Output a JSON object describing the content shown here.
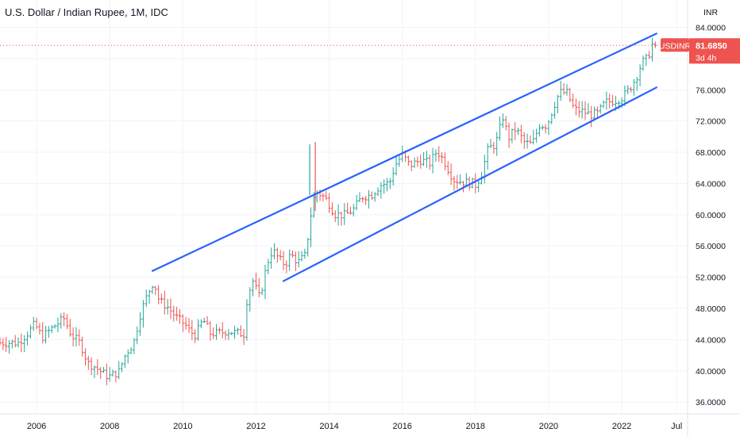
{
  "title": "U.S. Dollar / Indian Rupee, 1M, IDC",
  "currency_label": "INR",
  "price_badge": {
    "symbol": "USDINR",
    "price": "81.6850",
    "countdown": "3d 4h",
    "color": "#ef5350"
  },
  "colors": {
    "up": "#26a69a",
    "down": "#ef5350",
    "channel": "#2962ff",
    "grid": "#f0f3fa",
    "price_line": "#ef5350"
  },
  "chart_data": {
    "type": "candlestick",
    "title": "U.S. Dollar / Indian Rupee, 1M, IDC",
    "xlabel": "",
    "ylabel": "INR",
    "ylim": [
      34.5,
      87.5
    ],
    "xlim": [
      2005.0,
      2023.8
    ],
    "y_ticks": [
      "36.0000",
      "40.0000",
      "44.0000",
      "48.0000",
      "52.0000",
      "56.0000",
      "60.0000",
      "64.0000",
      "68.0000",
      "72.0000",
      "76.0000",
      "80.0000",
      "84.0000"
    ],
    "x_ticks": [
      {
        "label": "2006",
        "x": 2006
      },
      {
        "label": "2008",
        "x": 2008
      },
      {
        "label": "2010",
        "x": 2010
      },
      {
        "label": "2012",
        "x": 2012
      },
      {
        "label": "2014",
        "x": 2014
      },
      {
        "label": "2016",
        "x": 2016
      },
      {
        "label": "2018",
        "x": 2018
      },
      {
        "label": "2020",
        "x": 2020
      },
      {
        "label": "2022",
        "x": 2022
      },
      {
        "label": "Jul",
        "x": 2023.5
      }
    ],
    "last_price": 81.685,
    "channel_lines": [
      {
        "name": "upper",
        "from": [
          2009.17,
          52.8
        ],
        "to": [
          2022.95,
          83.2
        ]
      },
      {
        "name": "lower",
        "from": [
          2012.75,
          51.5
        ],
        "to": [
          2022.95,
          76.3
        ]
      }
    ],
    "series_anchor_points": [
      [
        2005.0,
        43.6
      ],
      [
        2005.5,
        43.6
      ],
      [
        2005.75,
        44.8
      ],
      [
        2005.95,
        46.0
      ],
      [
        2006.15,
        44.3
      ],
      [
        2006.5,
        45.8
      ],
      [
        2006.75,
        46.7
      ],
      [
        2006.95,
        44.6
      ],
      [
        2007.2,
        43.5
      ],
      [
        2007.4,
        41.0
      ],
      [
        2007.6,
        40.5
      ],
      [
        2007.9,
        39.4
      ],
      [
        2008.0,
        39.3
      ],
      [
        2008.25,
        39.9
      ],
      [
        2008.45,
        42.3
      ],
      [
        2008.65,
        43.5
      ],
      [
        2008.85,
        47.5
      ],
      [
        2009.05,
        50.0
      ],
      [
        2009.2,
        51.5
      ],
      [
        2009.35,
        49.0
      ],
      [
        2009.6,
        48.1
      ],
      [
        2009.85,
        46.7
      ],
      [
        2010.05,
        46.0
      ],
      [
        2010.2,
        45.0
      ],
      [
        2010.35,
        44.6
      ],
      [
        2010.55,
        46.6
      ],
      [
        2010.75,
        44.8
      ],
      [
        2010.95,
        44.8
      ],
      [
        2011.2,
        45.1
      ],
      [
        2011.45,
        44.9
      ],
      [
        2011.7,
        44.7
      ],
      [
        2011.75,
        49.0
      ],
      [
        2011.9,
        51.7
      ],
      [
        2012.1,
        49.3
      ],
      [
        2012.3,
        53.7
      ],
      [
        2012.45,
        55.5
      ],
      [
        2012.65,
        54.2
      ],
      [
        2012.8,
        53.6
      ],
      [
        2012.95,
        54.9
      ],
      [
        2013.15,
        53.9
      ],
      [
        2013.35,
        54.8
      ],
      [
        2013.5,
        60.0
      ],
      [
        2013.62,
        63.0
      ],
      [
        2013.8,
        62.5
      ],
      [
        2013.95,
        61.8
      ],
      [
        2014.15,
        60.1
      ],
      [
        2014.4,
        59.9
      ],
      [
        2014.65,
        60.6
      ],
      [
        2014.9,
        62.3
      ],
      [
        2015.15,
        62.5
      ],
      [
        2015.4,
        63.8
      ],
      [
        2015.65,
        64.1
      ],
      [
        2015.8,
        66.3
      ],
      [
        2016.0,
        67.7
      ],
      [
        2016.2,
        66.3
      ],
      [
        2016.5,
        67.0
      ],
      [
        2016.75,
        66.6
      ],
      [
        2016.95,
        68.2
      ],
      [
        2017.15,
        66.8
      ],
      [
        2017.4,
        64.5
      ],
      [
        2017.65,
        64.2
      ],
      [
        2017.95,
        64.0
      ],
      [
        2018.0,
        63.8
      ],
      [
        2018.15,
        65.0
      ],
      [
        2018.35,
        68.5
      ],
      [
        2018.55,
        69.0
      ],
      [
        2018.75,
        72.5
      ],
      [
        2018.9,
        69.8
      ],
      [
        2019.1,
        71.0
      ],
      [
        2019.35,
        69.2
      ],
      [
        2019.55,
        69.0
      ],
      [
        2019.75,
        71.5
      ],
      [
        2019.95,
        71.4
      ],
      [
        2020.15,
        74.0
      ],
      [
        2020.3,
        75.7
      ],
      [
        2020.5,
        75.6
      ],
      [
        2020.7,
        73.5
      ],
      [
        2020.95,
        73.2
      ],
      [
        2021.15,
        72.8
      ],
      [
        2021.35,
        73.0
      ],
      [
        2021.55,
        74.4
      ],
      [
        2021.8,
        74.6
      ],
      [
        2022.0,
        75.0
      ],
      [
        2022.2,
        76.0
      ],
      [
        2022.4,
        77.6
      ],
      [
        2022.55,
        79.5
      ],
      [
        2022.7,
        80.0
      ],
      [
        2022.85,
        82.0
      ],
      [
        2022.93,
        81.685
      ]
    ]
  }
}
